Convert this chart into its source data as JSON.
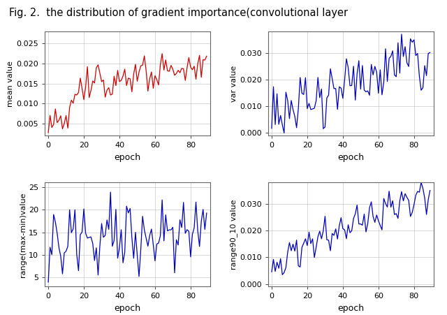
{
  "title": "Fig. 2.  the distribution of gradient importance(convolutional layer",
  "title_fontsize": 10.5,
  "n_epochs": 90,
  "subplot_configs": [
    {
      "ylabel": "mean value",
      "xlabel": "epoch",
      "color": "#cc0000",
      "ylim": [
        0.002,
        0.028
      ],
      "yticks": [
        0.005,
        0.01,
        0.015,
        0.02,
        0.025
      ],
      "xticks": [
        0,
        20,
        40,
        60,
        80
      ]
    },
    {
      "ylabel": "var value",
      "xlabel": "epoch",
      "color": "#0000bb",
      "ylim": [
        -0.001,
        0.038
      ],
      "yticks": [
        0.0,
        0.01,
        0.02,
        0.03
      ],
      "xticks": [
        0,
        20,
        40,
        60,
        80
      ]
    },
    {
      "ylabel": "range(max-min)value",
      "xlabel": "epoch",
      "color": "#0000bb",
      "ylim": [
        3,
        26
      ],
      "yticks": [
        5,
        10,
        15,
        20,
        25
      ],
      "xticks": [
        0,
        20,
        40,
        60,
        80
      ]
    },
    {
      "ylabel": "range90_10 value",
      "xlabel": "epoch",
      "color": "#0000bb",
      "ylim": [
        -0.001,
        0.038
      ],
      "yticks": [
        0.0,
        0.01,
        0.02,
        0.03
      ],
      "xticks": [
        0,
        20,
        40,
        60,
        80
      ]
    }
  ],
  "background_color": "#ffffff",
  "grid_color": "#bbbbbb"
}
